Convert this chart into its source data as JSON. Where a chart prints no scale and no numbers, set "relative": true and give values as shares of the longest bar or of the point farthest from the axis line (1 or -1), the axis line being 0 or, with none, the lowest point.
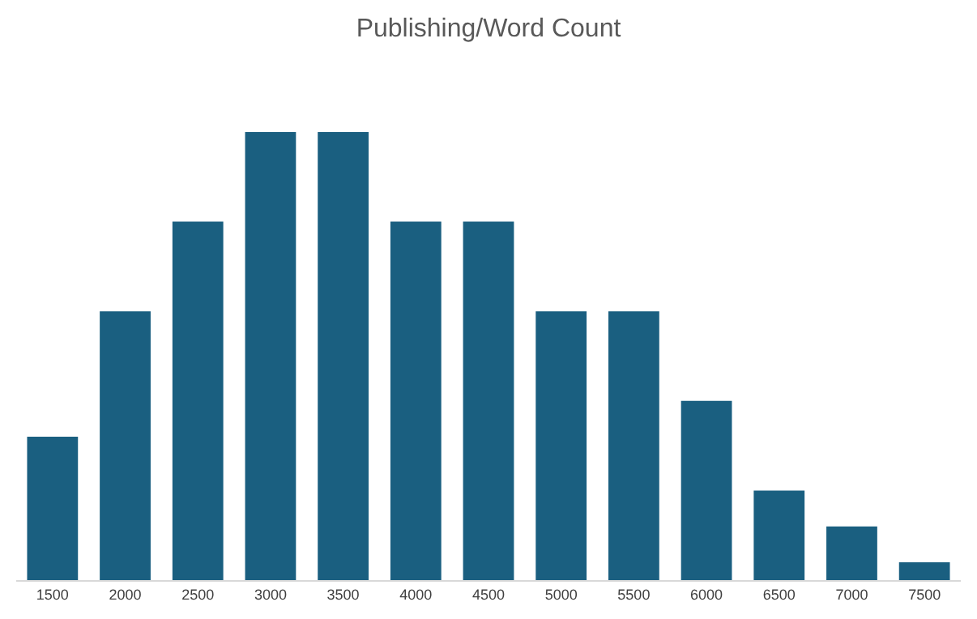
{
  "chart_data": {
    "type": "bar",
    "title": "Publishing/Word Count",
    "relative": true,
    "categories": [
      "1500",
      "2000",
      "2500",
      "3000",
      "3500",
      "4000",
      "4500",
      "5000",
      "5500",
      "6000",
      "6500",
      "7000",
      "7500"
    ],
    "values": [
      0.32,
      0.6,
      0.8,
      1,
      1,
      0.8,
      0.8,
      0.6,
      0.6,
      0.4,
      0.2,
      0.12,
      0.04
    ],
    "color": "#1a5f80"
  }
}
